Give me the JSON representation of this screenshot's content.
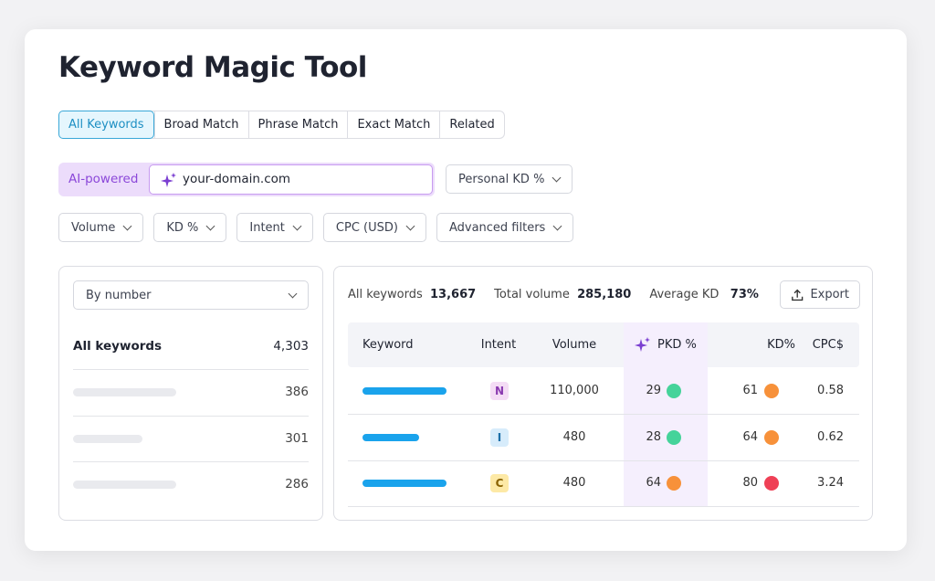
{
  "header": {
    "title": "Keyword Magic Tool"
  },
  "tabs": [
    "All Keywords",
    "Broad Match",
    "Phrase Match",
    "Exact Match",
    "Related"
  ],
  "search": {
    "label": "AI-powered",
    "input": "your-domain.com",
    "dropdown": "Personal KD %"
  },
  "filters": [
    "Volume",
    "KD %",
    "Intent",
    "CPC (USD)",
    "Advanced filters"
  ],
  "left_panel": {
    "dropdown": "By number",
    "total": {
      "label": "All keywords",
      "count": "4,303"
    },
    "counts": [
      "386",
      "301",
      "286"
    ]
  },
  "summary": {
    "items": [
      {
        "label": "All keywords",
        "value": "13,667"
      },
      {
        "label": "Total volume",
        "value": "285,180"
      },
      {
        "label": "Average KD",
        "value": "73%"
      }
    ],
    "export": "Export"
  },
  "table": {
    "columns": [
      "Keyword",
      "Intent",
      "Volume",
      "PKD %",
      "KD%",
      "CPC$"
    ],
    "rows": [
      {
        "intent": "N",
        "volume": "110,000",
        "pkd": "29",
        "pkd_color": "#45d39a",
        "kd": "61",
        "kd_color": "#f7913a",
        "cpc": "0.58"
      },
      {
        "intent": "I",
        "volume": "480",
        "pkd": "28",
        "pkd_color": "#45d39a",
        "kd": "64",
        "kd_color": "#f7913a",
        "cpc": "0.62"
      },
      {
        "intent": "C",
        "volume": "480",
        "pkd": "64",
        "pkd_color": "#f7913a",
        "kd": "80",
        "kd_color": "#ef4056",
        "cpc": "3.24"
      }
    ]
  }
}
